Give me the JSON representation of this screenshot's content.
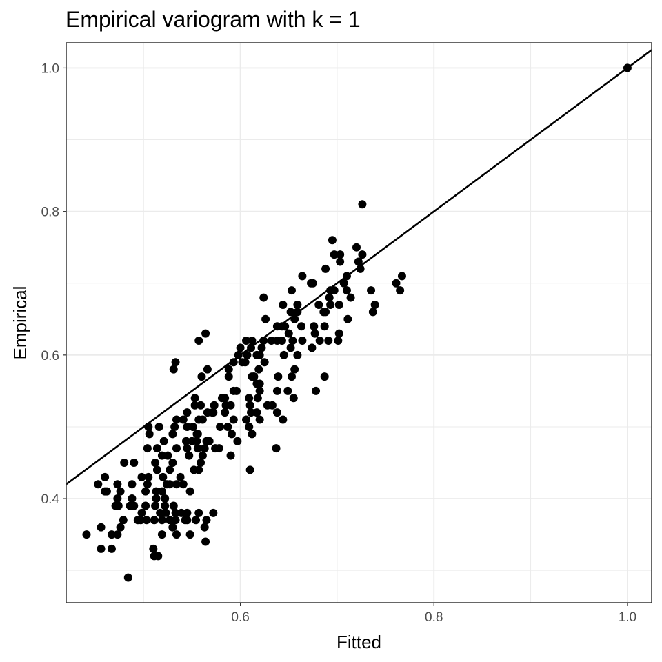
{
  "chart_data": {
    "type": "scatter",
    "title": "Empirical variogram with k = 1",
    "xlabel": "Fitted",
    "ylabel": "Empirical",
    "xlim": [
      0.42,
      1.025
    ],
    "ylim": [
      0.255,
      1.035
    ],
    "x_ticks": [
      0.6,
      0.8,
      1.0
    ],
    "x_tick_labels": [
      "0.6",
      "0.8",
      "1.0"
    ],
    "x_minor_ticks": [
      0.5,
      0.7,
      0.9
    ],
    "y_ticks": [
      0.4,
      0.6,
      0.8,
      1.0
    ],
    "y_tick_labels": [
      "0.4",
      "0.6",
      "0.8",
      "1.0"
    ],
    "y_minor_ticks": [
      0.3,
      0.5,
      0.7,
      0.9
    ],
    "grid": true,
    "reference_line": {
      "slope": 1,
      "intercept": 0,
      "label": ""
    },
    "colors": {
      "points": "#000000",
      "line": "#000000",
      "grid": "#ebebeb",
      "panel_border": "#333333"
    },
    "points": [
      [
        1.0,
        1.0
      ],
      [
        0.726,
        0.81
      ],
      [
        0.695,
        0.76
      ],
      [
        0.72,
        0.75
      ],
      [
        0.697,
        0.74
      ],
      [
        0.703,
        0.74
      ],
      [
        0.726,
        0.74
      ],
      [
        0.703,
        0.73
      ],
      [
        0.722,
        0.73
      ],
      [
        0.688,
        0.72
      ],
      [
        0.724,
        0.72
      ],
      [
        0.767,
        0.71
      ],
      [
        0.664,
        0.71
      ],
      [
        0.71,
        0.71
      ],
      [
        0.675,
        0.7
      ],
      [
        0.673,
        0.7
      ],
      [
        0.761,
        0.7
      ],
      [
        0.707,
        0.7
      ],
      [
        0.735,
        0.69
      ],
      [
        0.765,
        0.69
      ],
      [
        0.693,
        0.69
      ],
      [
        0.697,
        0.69
      ],
      [
        0.71,
        0.69
      ],
      [
        0.653,
        0.69
      ],
      [
        0.624,
        0.68
      ],
      [
        0.692,
        0.68
      ],
      [
        0.714,
        0.68
      ],
      [
        0.693,
        0.67
      ],
      [
        0.739,
        0.67
      ],
      [
        0.659,
        0.67
      ],
      [
        0.644,
        0.67
      ],
      [
        0.681,
        0.67
      ],
      [
        0.702,
        0.67
      ],
      [
        0.688,
        0.66
      ],
      [
        0.737,
        0.66
      ],
      [
        0.686,
        0.66
      ],
      [
        0.659,
        0.66
      ],
      [
        0.652,
        0.66
      ],
      [
        0.656,
        0.65
      ],
      [
        0.711,
        0.65
      ],
      [
        0.626,
        0.65
      ],
      [
        0.646,
        0.64
      ],
      [
        0.687,
        0.64
      ],
      [
        0.638,
        0.64
      ],
      [
        0.643,
        0.64
      ],
      [
        0.663,
        0.64
      ],
      [
        0.676,
        0.64
      ],
      [
        0.702,
        0.63
      ],
      [
        0.677,
        0.63
      ],
      [
        0.65,
        0.63
      ],
      [
        0.682,
        0.62
      ],
      [
        0.664,
        0.62
      ],
      [
        0.654,
        0.62
      ],
      [
        0.624,
        0.62
      ],
      [
        0.632,
        0.62
      ],
      [
        0.612,
        0.62
      ],
      [
        0.606,
        0.62
      ],
      [
        0.638,
        0.62
      ],
      [
        0.643,
        0.62
      ],
      [
        0.701,
        0.62
      ],
      [
        0.691,
        0.62
      ],
      [
        0.557,
        0.62
      ],
      [
        0.564,
        0.63
      ],
      [
        0.674,
        0.61
      ],
      [
        0.6,
        0.61
      ],
      [
        0.611,
        0.61
      ],
      [
        0.622,
        0.61
      ],
      [
        0.652,
        0.61
      ],
      [
        0.617,
        0.6
      ],
      [
        0.62,
        0.6
      ],
      [
        0.645,
        0.6
      ],
      [
        0.659,
        0.6
      ],
      [
        0.607,
        0.6
      ],
      [
        0.598,
        0.6
      ],
      [
        0.605,
        0.59
      ],
      [
        0.625,
        0.59
      ],
      [
        0.533,
        0.59
      ],
      [
        0.593,
        0.59
      ],
      [
        0.602,
        0.59
      ],
      [
        0.531,
        0.58
      ],
      [
        0.566,
        0.58
      ],
      [
        0.588,
        0.58
      ],
      [
        0.656,
        0.58
      ],
      [
        0.619,
        0.58
      ],
      [
        0.588,
        0.57
      ],
      [
        0.614,
        0.57
      ],
      [
        0.614,
        0.57
      ],
      [
        0.612,
        0.57
      ],
      [
        0.56,
        0.57
      ],
      [
        0.639,
        0.57
      ],
      [
        0.687,
        0.57
      ],
      [
        0.653,
        0.57
      ],
      [
        0.617,
        0.56
      ],
      [
        0.62,
        0.56
      ],
      [
        0.62,
        0.55
      ],
      [
        0.596,
        0.55
      ],
      [
        0.593,
        0.55
      ],
      [
        0.638,
        0.55
      ],
      [
        0.649,
        0.55
      ],
      [
        0.678,
        0.55
      ],
      [
        0.609,
        0.54
      ],
      [
        0.553,
        0.54
      ],
      [
        0.581,
        0.54
      ],
      [
        0.584,
        0.54
      ],
      [
        0.618,
        0.54
      ],
      [
        0.655,
        0.54
      ],
      [
        0.628,
        0.53
      ],
      [
        0.633,
        0.53
      ],
      [
        0.553,
        0.53
      ],
      [
        0.559,
        0.53
      ],
      [
        0.573,
        0.53
      ],
      [
        0.585,
        0.53
      ],
      [
        0.59,
        0.53
      ],
      [
        0.61,
        0.53
      ],
      [
        0.611,
        0.52
      ],
      [
        0.545,
        0.52
      ],
      [
        0.571,
        0.52
      ],
      [
        0.566,
        0.52
      ],
      [
        0.572,
        0.52
      ],
      [
        0.617,
        0.52
      ],
      [
        0.584,
        0.52
      ],
      [
        0.541,
        0.51
      ],
      [
        0.534,
        0.51
      ],
      [
        0.561,
        0.51
      ],
      [
        0.557,
        0.51
      ],
      [
        0.62,
        0.51
      ],
      [
        0.606,
        0.51
      ],
      [
        0.644,
        0.51
      ],
      [
        0.593,
        0.51
      ],
      [
        0.638,
        0.52
      ],
      [
        0.516,
        0.5
      ],
      [
        0.532,
        0.5
      ],
      [
        0.545,
        0.5
      ],
      [
        0.551,
        0.5
      ],
      [
        0.505,
        0.5
      ],
      [
        0.579,
        0.5
      ],
      [
        0.587,
        0.5
      ],
      [
        0.609,
        0.5
      ],
      [
        0.506,
        0.49
      ],
      [
        0.53,
        0.49
      ],
      [
        0.556,
        0.49
      ],
      [
        0.555,
        0.49
      ],
      [
        0.591,
        0.49
      ],
      [
        0.612,
        0.49
      ],
      [
        0.597,
        0.48
      ],
      [
        0.544,
        0.48
      ],
      [
        0.55,
        0.48
      ],
      [
        0.521,
        0.48
      ],
      [
        0.555,
        0.48
      ],
      [
        0.565,
        0.48
      ],
      [
        0.568,
        0.48
      ],
      [
        0.578,
        0.47
      ],
      [
        0.574,
        0.47
      ],
      [
        0.534,
        0.47
      ],
      [
        0.514,
        0.47
      ],
      [
        0.545,
        0.47
      ],
      [
        0.556,
        0.47
      ],
      [
        0.563,
        0.47
      ],
      [
        0.637,
        0.47
      ],
      [
        0.504,
        0.47
      ],
      [
        0.547,
        0.46
      ],
      [
        0.525,
        0.46
      ],
      [
        0.519,
        0.46
      ],
      [
        0.561,
        0.46
      ],
      [
        0.59,
        0.46
      ],
      [
        0.512,
        0.45
      ],
      [
        0.48,
        0.45
      ],
      [
        0.559,
        0.45
      ],
      [
        0.53,
        0.45
      ],
      [
        0.49,
        0.45
      ],
      [
        0.527,
        0.44
      ],
      [
        0.514,
        0.44
      ],
      [
        0.552,
        0.44
      ],
      [
        0.557,
        0.44
      ],
      [
        0.61,
        0.44
      ],
      [
        0.52,
        0.43
      ],
      [
        0.538,
        0.43
      ],
      [
        0.498,
        0.43
      ],
      [
        0.505,
        0.43
      ],
      [
        0.46,
        0.43
      ],
      [
        0.524,
        0.42
      ],
      [
        0.527,
        0.42
      ],
      [
        0.453,
        0.42
      ],
      [
        0.473,
        0.42
      ],
      [
        0.488,
        0.42
      ],
      [
        0.504,
        0.42
      ],
      [
        0.534,
        0.42
      ],
      [
        0.541,
        0.42
      ],
      [
        0.502,
        0.41
      ],
      [
        0.513,
        0.41
      ],
      [
        0.519,
        0.41
      ],
      [
        0.476,
        0.41
      ],
      [
        0.522,
        0.4
      ],
      [
        0.548,
        0.41
      ],
      [
        0.46,
        0.41
      ],
      [
        0.462,
        0.41
      ],
      [
        0.473,
        0.4
      ],
      [
        0.488,
        0.4
      ],
      [
        0.513,
        0.4
      ],
      [
        0.512,
        0.39
      ],
      [
        0.471,
        0.39
      ],
      [
        0.474,
        0.39
      ],
      [
        0.486,
        0.39
      ],
      [
        0.49,
        0.39
      ],
      [
        0.502,
        0.39
      ],
      [
        0.522,
        0.39
      ],
      [
        0.531,
        0.39
      ],
      [
        0.533,
        0.38
      ],
      [
        0.517,
        0.38
      ],
      [
        0.498,
        0.38
      ],
      [
        0.523,
        0.38
      ],
      [
        0.557,
        0.38
      ],
      [
        0.572,
        0.38
      ],
      [
        0.545,
        0.38
      ],
      [
        0.539,
        0.38
      ],
      [
        0.565,
        0.37
      ],
      [
        0.533,
        0.37
      ],
      [
        0.497,
        0.37
      ],
      [
        0.494,
        0.37
      ],
      [
        0.503,
        0.37
      ],
      [
        0.519,
        0.37
      ],
      [
        0.545,
        0.37
      ],
      [
        0.543,
        0.37
      ],
      [
        0.554,
        0.37
      ],
      [
        0.479,
        0.37
      ],
      [
        0.511,
        0.37
      ],
      [
        0.527,
        0.37
      ],
      [
        0.563,
        0.36
      ],
      [
        0.53,
        0.36
      ],
      [
        0.456,
        0.36
      ],
      [
        0.476,
        0.36
      ],
      [
        0.441,
        0.35
      ],
      [
        0.467,
        0.35
      ],
      [
        0.473,
        0.35
      ],
      [
        0.534,
        0.35
      ],
      [
        0.519,
        0.35
      ],
      [
        0.548,
        0.35
      ],
      [
        0.564,
        0.34
      ],
      [
        0.456,
        0.33
      ],
      [
        0.467,
        0.33
      ],
      [
        0.51,
        0.33
      ],
      [
        0.511,
        0.32
      ],
      [
        0.515,
        0.32
      ],
      [
        0.484,
        0.29
      ]
    ]
  }
}
